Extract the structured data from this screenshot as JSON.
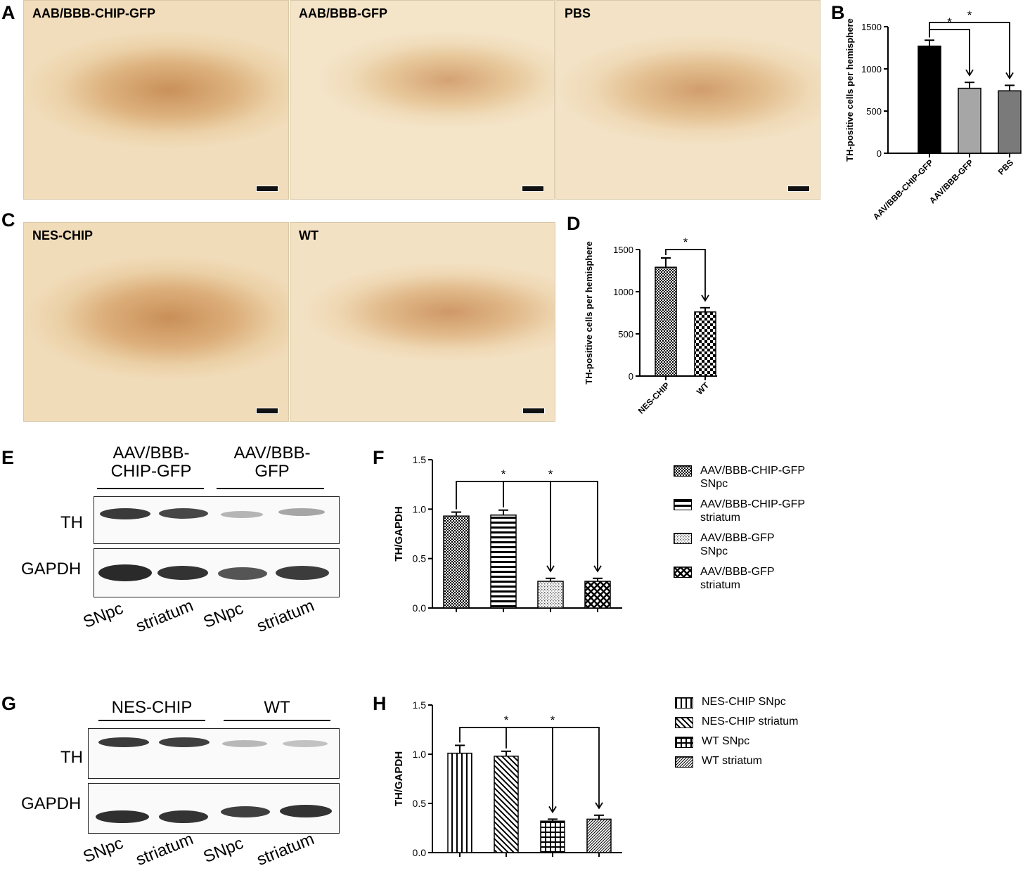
{
  "panels": {
    "A": "A",
    "B": "B",
    "C": "C",
    "D": "D",
    "E": "E",
    "F": "F",
    "G": "G",
    "H": "H"
  },
  "micrographs_A": [
    {
      "label": "AAB/BBB-CHIP-GFP"
    },
    {
      "label": "AAB/BBB-GFP"
    },
    {
      "label": "PBS"
    }
  ],
  "micrographs_C": [
    {
      "label": "NES-CHIP"
    },
    {
      "label": "WT"
    }
  ],
  "blot_E": {
    "groups": [
      "AAV/BBB-\nCHIP-GFP",
      "AAV/BBB-\nGFP"
    ],
    "rows": [
      "TH",
      "GAPDH"
    ],
    "lanes": [
      "SNpc",
      "striatum",
      "SNpc",
      "striatum"
    ]
  },
  "blot_G": {
    "groups": [
      "NES-CHIP",
      "WT"
    ],
    "rows": [
      "TH",
      "GAPDH"
    ],
    "lanes": [
      "SNpc",
      "striatum",
      "SNpc",
      "striatum"
    ]
  },
  "legend_F": [
    {
      "label": "AAV/BBB-CHIP-GFP\nSNpc",
      "pattern": "dots-dense"
    },
    {
      "label": "AAV/BBB-CHIP-GFP\nstriatum",
      "pattern": "hstripes"
    },
    {
      "label": "AAV/BBB-GFP\nSNpc",
      "pattern": "dots-light"
    },
    {
      "label": "AAV/BBB-GFP\nstriatum",
      "pattern": "xcross"
    }
  ],
  "legend_H": [
    {
      "label": "NES-CHIP SNpc",
      "pattern": "vstripes"
    },
    {
      "label": "NES-CHIP striatum",
      "pattern": "diag"
    },
    {
      "label": "WT SNpc",
      "pattern": "grid"
    },
    {
      "label": "WT striatum",
      "pattern": "diag-fine"
    }
  ],
  "chart_data": [
    {
      "id": "B",
      "type": "bar",
      "ylabel": "TH-positive cells per hemisphere",
      "ylim": [
        0,
        1500
      ],
      "yticks": [
        0,
        500,
        1000,
        1500
      ],
      "categories": [
        "AAV/BBB-CHIP-GFP",
        "AAV/BBB-GFP",
        "PBS"
      ],
      "values": [
        1270,
        770,
        740
      ],
      "errors": [
        70,
        70,
        65
      ],
      "colors": [
        "#000000",
        "#a6a6a6",
        "#7a7a7a"
      ],
      "significance": [
        {
          "from": 0,
          "to": 1,
          "label": "*"
        },
        {
          "from": 0,
          "to": 2,
          "label": "*"
        }
      ]
    },
    {
      "id": "D",
      "type": "bar",
      "ylabel": "TH-positive cells per hemisphere",
      "ylim": [
        0,
        1500
      ],
      "yticks": [
        0,
        500,
        1000,
        1500
      ],
      "categories": [
        "NES-CHIP",
        "WT"
      ],
      "values": [
        1290,
        760
      ],
      "errors": [
        110,
        50
      ],
      "patterns": [
        "check-fine",
        "check-coarse"
      ],
      "significance": [
        {
          "from": 0,
          "to": 1,
          "label": "*"
        }
      ]
    },
    {
      "id": "F",
      "type": "bar",
      "ylabel": "TH/GAPDH",
      "ylim": [
        0,
        1.5
      ],
      "yticks": [
        "0.0",
        "0.5",
        "1.0",
        "1.5"
      ],
      "categories": [
        "AAV/BBB-CHIP-GFP SNpc",
        "AAV/BBB-CHIP-GFP striatum",
        "AAV/BBB-GFP SNpc",
        "AAV/BBB-GFP striatum"
      ],
      "values": [
        0.93,
        0.94,
        0.27,
        0.27
      ],
      "errors": [
        0.04,
        0.05,
        0.03,
        0.03
      ],
      "patterns": [
        "dots-dense",
        "hstripes",
        "dots-light",
        "xcross"
      ],
      "significance": [
        {
          "from": 0,
          "to": 2,
          "label": "*"
        },
        {
          "from": 1,
          "to": 3,
          "label": "*"
        }
      ]
    },
    {
      "id": "H",
      "type": "bar",
      "ylabel": "TH/GAPDH",
      "ylim": [
        0,
        1.5
      ],
      "yticks": [
        "0.0",
        "0.5",
        "1.0",
        "1.5"
      ],
      "categories": [
        "NES-CHIP SNpc",
        "NES-CHIP striatum",
        "WT SNpc",
        "WT striatum"
      ],
      "values": [
        1.01,
        0.98,
        0.32,
        0.34
      ],
      "errors": [
        0.08,
        0.05,
        0.02,
        0.04
      ],
      "patterns": [
        "vstripes",
        "diag",
        "grid",
        "diag-fine"
      ],
      "significance": [
        {
          "from": 0,
          "to": 2,
          "label": "*"
        },
        {
          "from": 1,
          "to": 3,
          "label": "*"
        }
      ]
    }
  ]
}
